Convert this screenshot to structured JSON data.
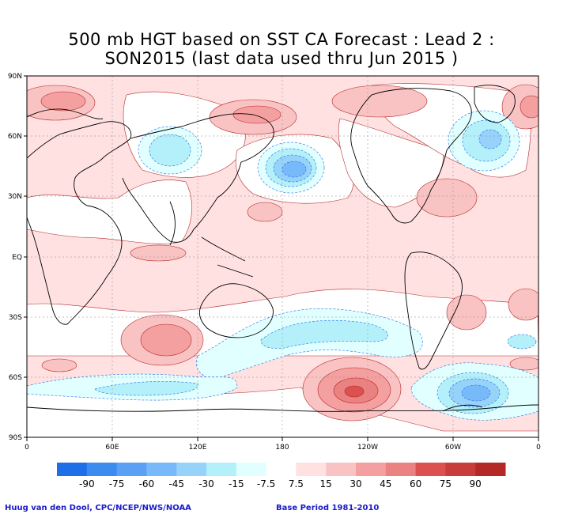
{
  "title": {
    "line1": "500 mb HGT based on SST CA Forecast : Lead 2 :",
    "line2": "SON2015 (last data used thru Jun 2015 )"
  },
  "map": {
    "projection": "cylindrical-equidistant",
    "lat_labels": [
      "90N",
      "60N",
      "30N",
      "EQ",
      "30S",
      "60S",
      "90S"
    ],
    "lon_labels": [
      "0",
      "60E",
      "120E",
      "180",
      "120W",
      "60W",
      "0"
    ],
    "colors": {
      "land_outline": "#000000",
      "background_neutral": "#ffffff"
    }
  },
  "colorbar": {
    "labels": [
      "-90",
      "-75",
      "-60",
      "-45",
      "-30",
      "-15",
      "-7.5",
      "7.5",
      "15",
      "30",
      "45",
      "60",
      "75",
      "90"
    ],
    "colors": [
      "#1e6ee8",
      "#3c8cf0",
      "#5aa0f5",
      "#78b9fa",
      "#96d2fa",
      "#b4f0fa",
      "#e1ffff",
      "#ffffff",
      "#ffe1e1",
      "#fac3c3",
      "#f5a0a0",
      "#eb8282",
      "#dc5050",
      "#c83c3c",
      "#b42828"
    ]
  },
  "footer": {
    "credit": "Huug van den Dool, CPC/NCEP/NWS/NOAA",
    "base_period": "Base Period 1981-2010"
  }
}
